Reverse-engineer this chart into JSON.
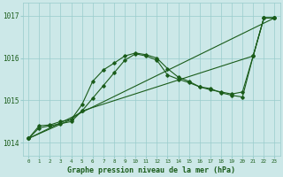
{
  "title": "Graphe pression niveau de la mer (hPa)",
  "bg_color": "#cce8e8",
  "grid_color": "#99cccc",
  "line_color": "#1a5c1a",
  "xlim": [
    -0.5,
    23.5
  ],
  "ylim": [
    1013.7,
    1017.3
  ],
  "yticks": [
    1014,
    1015,
    1016,
    1017
  ],
  "ytick_labels": [
    "1014",
    "1015",
    "1016",
    "1017"
  ],
  "xticks": [
    0,
    1,
    2,
    3,
    4,
    5,
    6,
    7,
    8,
    9,
    10,
    11,
    12,
    13,
    14,
    15,
    16,
    17,
    18,
    19,
    20,
    21,
    22,
    23
  ],
  "series": [
    {
      "x": [
        0,
        1,
        2,
        3,
        4,
        5,
        6,
        7,
        8,
        9,
        10,
        11,
        12,
        13,
        14,
        15,
        16,
        17,
        18,
        19,
        20,
        21,
        22,
        23
      ],
      "y": [
        1014.1,
        1014.35,
        1014.4,
        1014.45,
        1014.5,
        1014.75,
        1015.05,
        1015.35,
        1015.65,
        1015.95,
        1016.1,
        1016.05,
        1015.95,
        1015.6,
        1015.5,
        1015.42,
        1015.32,
        1015.25,
        1015.2,
        1015.15,
        1015.2,
        1016.05,
        1016.95,
        1016.95
      ]
    },
    {
      "x": [
        0,
        1,
        2,
        3,
        4,
        5,
        6,
        7,
        8,
        9,
        10,
        11,
        12,
        13,
        14,
        15,
        16,
        17,
        18,
        19,
        20,
        21,
        22,
        23
      ],
      "y": [
        1014.1,
        1014.4,
        1014.42,
        1014.5,
        1014.55,
        1014.9,
        1015.45,
        1015.72,
        1015.88,
        1016.05,
        1016.12,
        1016.08,
        1016.0,
        1015.75,
        1015.55,
        1015.45,
        1015.32,
        1015.28,
        1015.18,
        1015.12,
        1015.08,
        1016.05,
        1016.95,
        1016.95
      ]
    },
    {
      "x": [
        0,
        23
      ],
      "y": [
        1014.1,
        1016.95
      ]
    },
    {
      "x": [
        0,
        4,
        5,
        21,
        22,
        23
      ],
      "y": [
        1014.1,
        1014.55,
        1014.75,
        1016.05,
        1016.95,
        1016.95
      ]
    }
  ]
}
